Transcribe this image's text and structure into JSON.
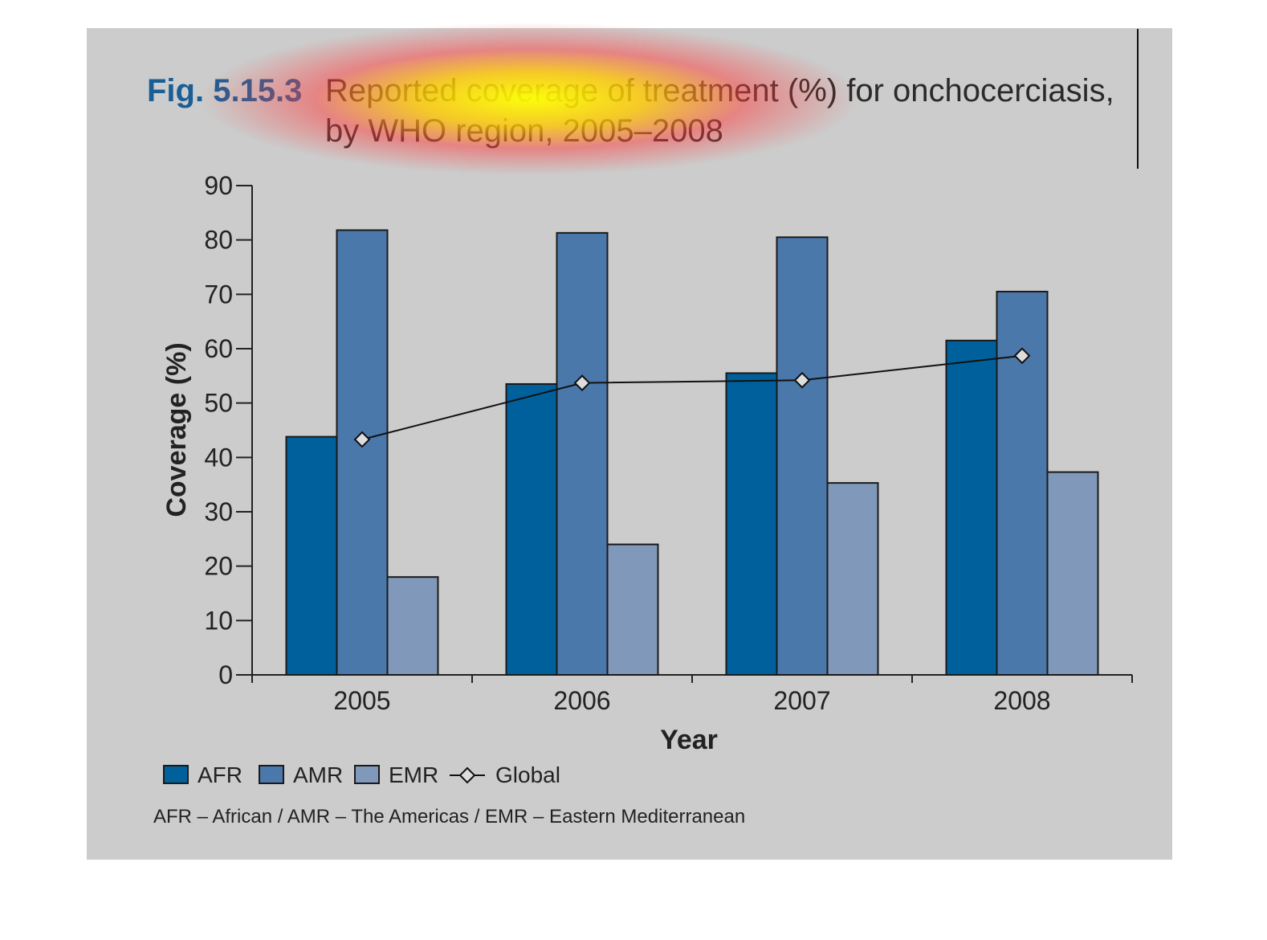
{
  "figure": {
    "number": "Fig. 5.15.3",
    "title_line1": "Reported coverage of treatment (%) for onchocerciasis,",
    "title_line2": "by WHO region, 2005–2008",
    "footnote": "AFR – African / AMR – The Americas / EMR – Eastern Mediterranean"
  },
  "chart_data": {
    "type": "bar",
    "title": "Reported coverage of treatment (%) for onchocerciasis, by WHO region, 2005–2008",
    "xlabel": "Year",
    "ylabel": "Coverage (%)",
    "categories": [
      "2005",
      "2006",
      "2007",
      "2008"
    ],
    "ylim": [
      0,
      90
    ],
    "yticks": [
      0,
      10,
      20,
      30,
      40,
      50,
      60,
      70,
      80,
      90
    ],
    "series": [
      {
        "name": "AFR",
        "type": "bar",
        "color": "#00609c",
        "values": [
          43.8,
          53.5,
          55.5,
          61.5
        ]
      },
      {
        "name": "AMR",
        "type": "bar",
        "color": "#4a78aa",
        "values": [
          81.8,
          81.3,
          80.5,
          70.5
        ]
      },
      {
        "name": "EMR",
        "type": "bar",
        "color": "#8098ba",
        "values": [
          18,
          24,
          35.3,
          37.3
        ]
      },
      {
        "name": "Global",
        "type": "line",
        "color": "#111111",
        "values": [
          43.3,
          53.7,
          54.2,
          58.7
        ]
      }
    ],
    "legend": "bottom-left",
    "grid": false
  }
}
